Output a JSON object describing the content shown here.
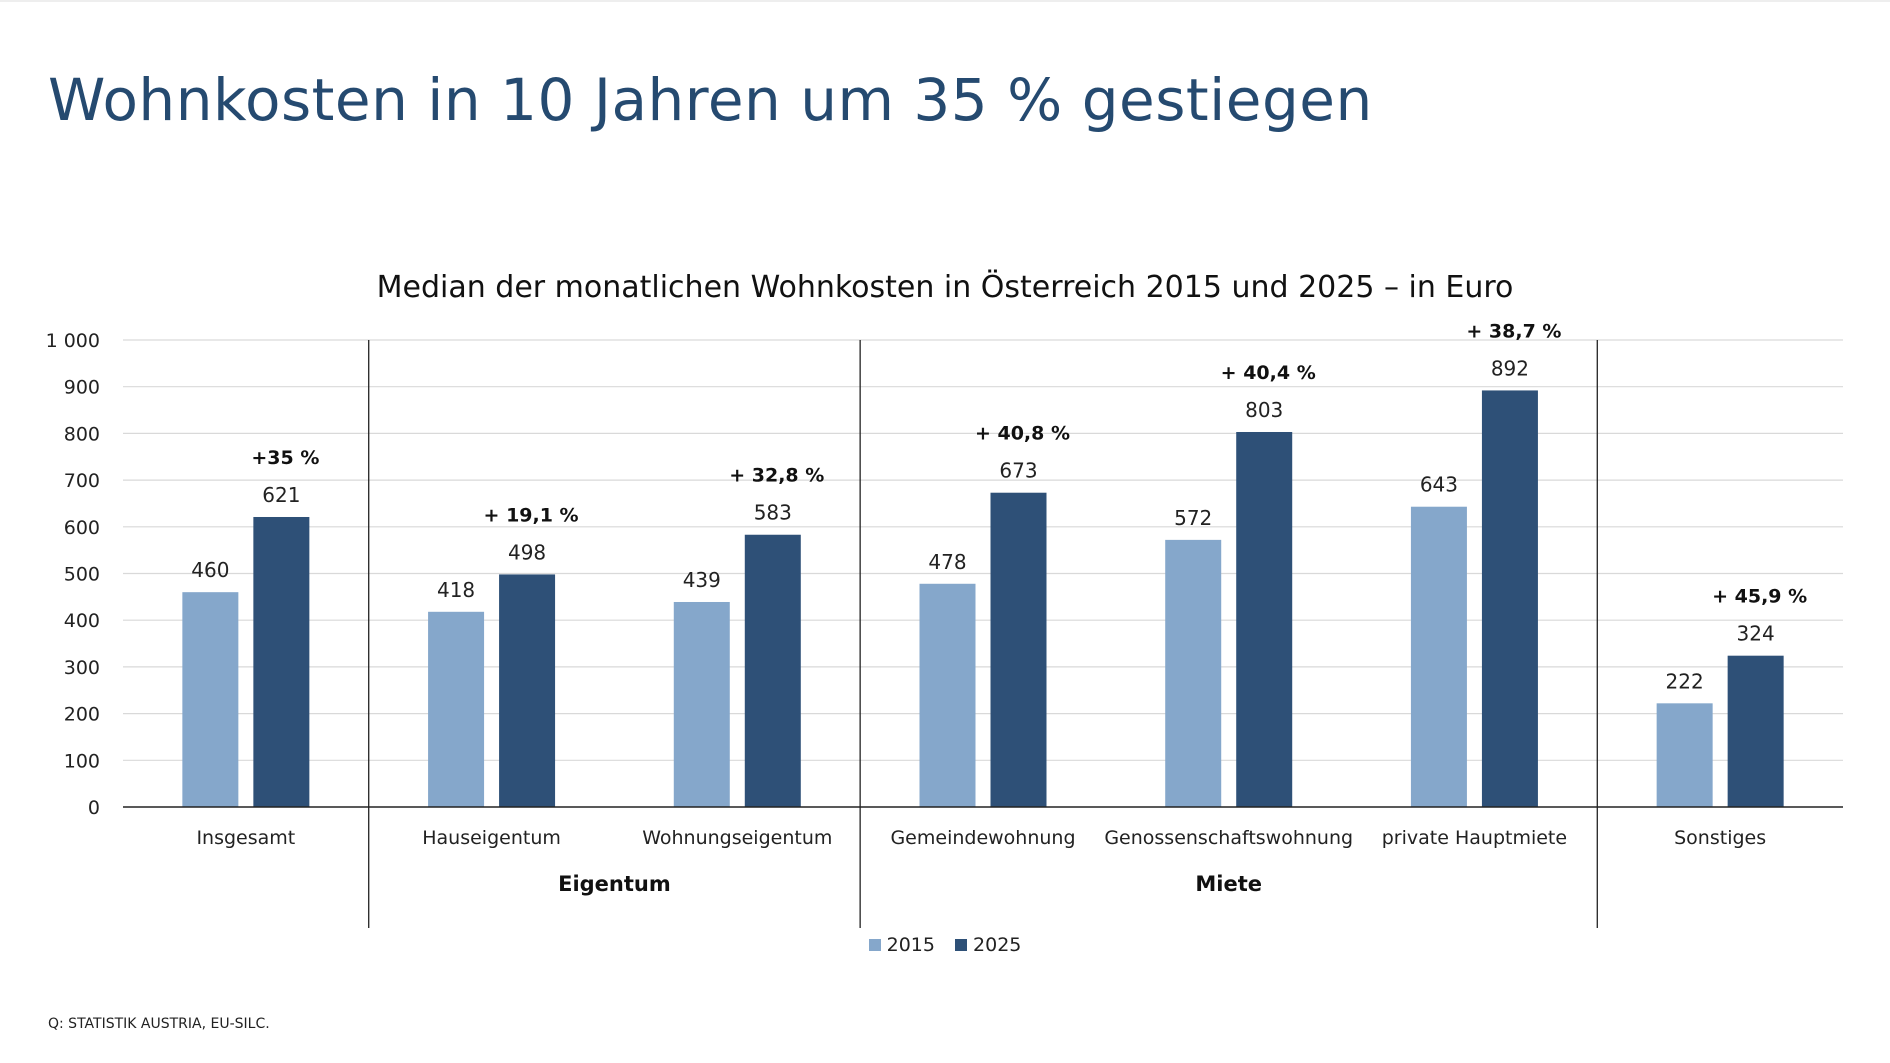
{
  "headline": "Wohnkosten in 10 Jahren um 35 % gestiegen",
  "source": "Q: STATISTIK AUSTRIA, EU-SILC.",
  "colors": {
    "s2015": "#85a7cb",
    "s2025": "#2e5077",
    "title": "#254a70"
  },
  "chart_data": {
    "type": "bar",
    "title": "Median der monatlichen Wohnkosten in Österreich 2015 und 2025 – in Euro",
    "xlabel": "",
    "ylabel": "",
    "ylim": [
      0,
      1000
    ],
    "yticks": [
      "0",
      "100",
      "200",
      "300",
      "400",
      "500",
      "600",
      "700",
      "800",
      "900",
      "1 000"
    ],
    "grid": true,
    "legend_position": "bottom-center",
    "categories": [
      "Insgesamt",
      "Hauseigentum",
      "Wohnungseigentum",
      "Gemeindewohnung",
      "Genossenschaftswohnung",
      "private Hauptmiete",
      "Sonstiges"
    ],
    "groups": [
      {
        "label": "",
        "categories": [
          "Insgesamt"
        ]
      },
      {
        "label": "Eigentum",
        "categories": [
          "Hauseigentum",
          "Wohnungseigentum"
        ]
      },
      {
        "label": "Miete",
        "categories": [
          "Gemeindewohnung",
          "Genossenschaftswohnung",
          "private Hauptmiete"
        ]
      },
      {
        "label": "",
        "categories": [
          "Sonstiges"
        ]
      }
    ],
    "series": [
      {
        "name": "2015",
        "values": [
          460,
          418,
          439,
          478,
          572,
          643,
          222
        ]
      },
      {
        "name": "2025",
        "values": [
          621,
          498,
          583,
          673,
          803,
          892,
          324
        ]
      }
    ],
    "change_labels": [
      "+35 %",
      "+ 19,1 %",
      "+ 32,8 %",
      "+ 40,8 %",
      "+ 40,4 %",
      "+ 38,7 %",
      "+ 45,9 %"
    ]
  }
}
